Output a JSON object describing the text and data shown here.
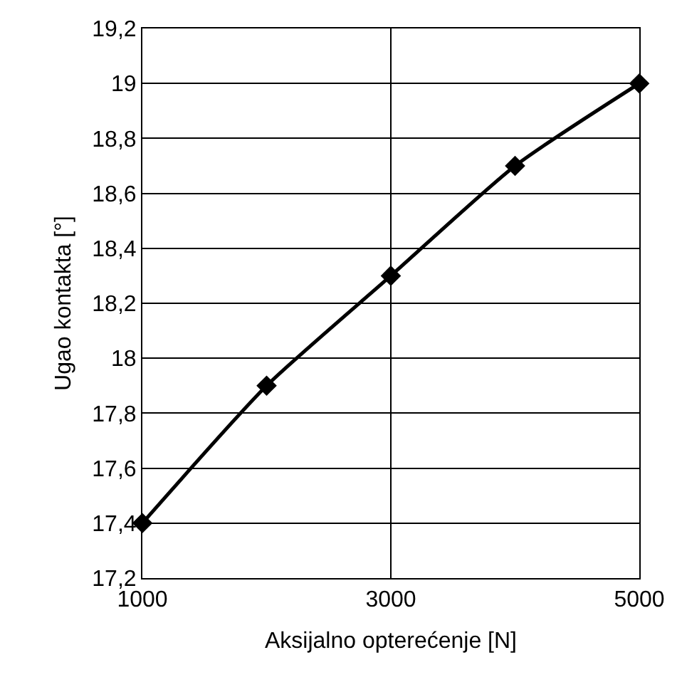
{
  "chart_data": {
    "type": "line",
    "xlabel": "Aksijalno opterećenje [N]",
    "ylabel": "Ugao kontakta [°]",
    "x": [
      1000,
      2000,
      3000,
      4000,
      5000
    ],
    "series": [
      {
        "color": "#000000",
        "values": [
          17.4,
          17.9,
          18.3,
          18.7,
          19.0
        ]
      }
    ],
    "xlim": [
      1000,
      5000
    ],
    "xticks": [
      1000,
      3000,
      5000
    ],
    "ylim": [
      17.2,
      19.2
    ],
    "yticks": [
      {
        "value": 17.2,
        "label": "17,2"
      },
      {
        "value": 17.4,
        "label": "17,4"
      },
      {
        "value": 17.6,
        "label": "17,6"
      },
      {
        "value": 17.8,
        "label": "17,8"
      },
      18,
      {
        "value": 18.2,
        "label": "18,2"
      },
      {
        "value": 18.4,
        "label": "18,4"
      },
      {
        "value": 18.6,
        "label": "18,6"
      },
      {
        "value": 18.8,
        "label": "18,8"
      },
      19,
      {
        "value": 19.2,
        "label": "19,2"
      }
    ],
    "grid": true,
    "marker": "diamond",
    "line_style": "solid"
  }
}
